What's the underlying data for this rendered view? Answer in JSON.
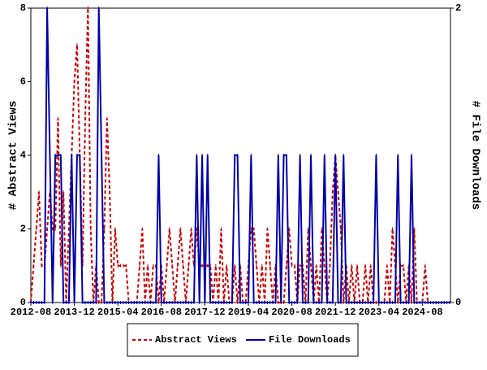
{
  "chart_data": {
    "type": "line",
    "x": [
      "2012-08",
      "2012-09",
      "2012-10",
      "2012-11",
      "2012-12",
      "2013-01",
      "2013-02",
      "2013-03",
      "2013-04",
      "2013-05",
      "2013-06",
      "2013-07",
      "2013-08",
      "2013-09",
      "2013-10",
      "2013-11",
      "2013-12",
      "2014-01",
      "2014-02",
      "2014-03",
      "2014-04",
      "2014-05",
      "2014-06",
      "2014-07",
      "2014-08",
      "2014-09",
      "2014-10",
      "2014-11",
      "2014-12",
      "2015-01",
      "2015-02",
      "2015-03",
      "2015-04",
      "2015-05",
      "2015-06",
      "2015-07",
      "2015-08",
      "2015-09",
      "2015-10",
      "2015-11",
      "2015-12",
      "2016-01",
      "2016-02",
      "2016-03",
      "2016-04",
      "2016-05",
      "2016-06",
      "2016-07",
      "2016-08",
      "2016-09",
      "2016-10",
      "2016-11",
      "2016-12",
      "2017-01",
      "2017-02",
      "2017-03",
      "2017-04",
      "2017-05",
      "2017-06",
      "2017-07",
      "2017-08",
      "2017-09",
      "2017-10",
      "2017-11",
      "2017-12",
      "2018-01",
      "2018-02",
      "2018-03",
      "2018-04",
      "2018-05",
      "2018-06",
      "2018-07",
      "2018-08",
      "2018-09",
      "2018-10",
      "2018-11",
      "2018-12",
      "2019-01",
      "2019-02",
      "2019-03",
      "2019-04",
      "2019-05",
      "2019-06",
      "2019-07",
      "2019-08",
      "2019-09",
      "2019-10",
      "2019-11",
      "2019-12",
      "2020-01",
      "2020-02",
      "2020-03",
      "2020-04",
      "2020-05",
      "2020-06",
      "2020-07",
      "2020-08",
      "2020-09",
      "2020-10",
      "2020-11",
      "2020-12",
      "2021-01",
      "2021-02",
      "2021-03",
      "2021-04",
      "2021-05",
      "2021-06",
      "2021-07",
      "2021-08",
      "2021-09",
      "2021-10",
      "2021-11",
      "2021-12",
      "2022-01",
      "2022-02",
      "2022-03",
      "2022-04",
      "2022-05",
      "2022-06",
      "2022-07",
      "2022-08",
      "2022-09",
      "2022-10",
      "2022-11",
      "2022-12",
      "2023-01",
      "2023-02",
      "2023-03",
      "2023-04",
      "2023-05",
      "2023-06",
      "2023-07",
      "2023-08",
      "2023-09",
      "2023-10",
      "2023-11",
      "2023-12",
      "2024-01",
      "2024-02",
      "2024-03",
      "2024-04",
      "2024-05",
      "2024-06",
      "2024-07",
      "2024-08",
      "2024-09",
      "2024-10",
      "2024-11",
      "2024-12",
      "2025-01",
      "2025-02",
      "2025-03",
      "2025-04",
      "2025-05",
      "2025-06"
    ],
    "xticks": [
      "2012-08",
      "2013-12",
      "2015-04",
      "2016-08",
      "2017-12",
      "2019-04",
      "2020-08",
      "2021-12",
      "2023-04",
      "2024-08"
    ],
    "ylabel": "# Abstract Views",
    "y2label": "# File Downloads",
    "ylim": [
      0,
      8
    ],
    "yticks": [
      0,
      2,
      4,
      6,
      8
    ],
    "y2lim": [
      0,
      2
    ],
    "y2ticks": [
      0,
      2
    ],
    "series": [
      {
        "name": "Abstract Views",
        "color": "#cc0000",
        "dash": true,
        "values": [
          0,
          1,
          2,
          3,
          1,
          1,
          2,
          3,
          2,
          2,
          5,
          1,
          3,
          0,
          2,
          4,
          6,
          7,
          4,
          1,
          5,
          8,
          2,
          0,
          1,
          0,
          0,
          2,
          5,
          3,
          0,
          2,
          1,
          1,
          1,
          1,
          0,
          0,
          0,
          0,
          1,
          2,
          0,
          1,
          0,
          1,
          1,
          0,
          1,
          0,
          1,
          2,
          1,
          0,
          1,
          2,
          1,
          0,
          1,
          2,
          1,
          2,
          1,
          1,
          1,
          1,
          1,
          0,
          1,
          0,
          2,
          0,
          1,
          0,
          0,
          1,
          0,
          1,
          0,
          0,
          1,
          2,
          2,
          1,
          0,
          1,
          0,
          2,
          1,
          0,
          1,
          0,
          0,
          0,
          1,
          2,
          1,
          1,
          0,
          1,
          1,
          0,
          2,
          1,
          0,
          1,
          0,
          2,
          1,
          0,
          1,
          3,
          4,
          3,
          2,
          0,
          1,
          0,
          1,
          0,
          1,
          0,
          0,
          1,
          0,
          1,
          0,
          0,
          0,
          0,
          0,
          1,
          0,
          2,
          1,
          0,
          1,
          1,
          0,
          1,
          0,
          2,
          0,
          0,
          0,
          1,
          0,
          0,
          0,
          0,
          0,
          0,
          0,
          0,
          0
        ]
      },
      {
        "name": "File Downloads",
        "color": "#0000aa",
        "axis": "y2",
        "values": [
          0,
          0,
          0,
          0,
          0,
          0,
          2,
          1,
          0,
          1,
          1,
          1,
          0,
          0,
          0,
          1,
          0,
          1,
          1,
          0,
          0,
          0,
          0,
          0,
          0,
          2,
          1,
          0,
          0,
          0,
          0,
          0,
          0,
          0,
          0,
          0,
          0,
          0,
          0,
          0,
          0,
          0,
          0,
          0,
          0,
          0,
          0,
          1,
          0,
          0,
          0,
          0,
          0,
          0,
          0,
          0,
          0,
          0,
          0,
          0,
          0,
          1,
          0,
          1,
          0,
          1,
          0,
          0,
          0,
          0,
          0,
          0,
          0,
          0,
          0,
          1,
          1,
          0,
          0,
          0,
          0,
          1,
          0,
          0,
          0,
          0,
          0,
          0,
          0,
          0,
          0,
          1,
          0,
          1,
          1,
          0,
          0,
          0,
          0,
          1,
          0,
          0,
          0,
          1,
          0,
          0,
          0,
          0,
          1,
          0,
          0,
          0,
          1,
          0,
          0,
          1,
          0,
          0,
          0,
          0,
          0,
          0,
          0,
          0,
          0,
          0,
          0,
          1,
          0,
          0,
          0,
          0,
          0,
          0,
          0,
          1,
          0,
          0,
          0,
          0,
          1,
          0,
          0,
          0,
          0,
          0,
          0,
          0,
          0,
          0,
          0,
          0,
          0,
          0,
          0
        ]
      }
    ]
  }
}
